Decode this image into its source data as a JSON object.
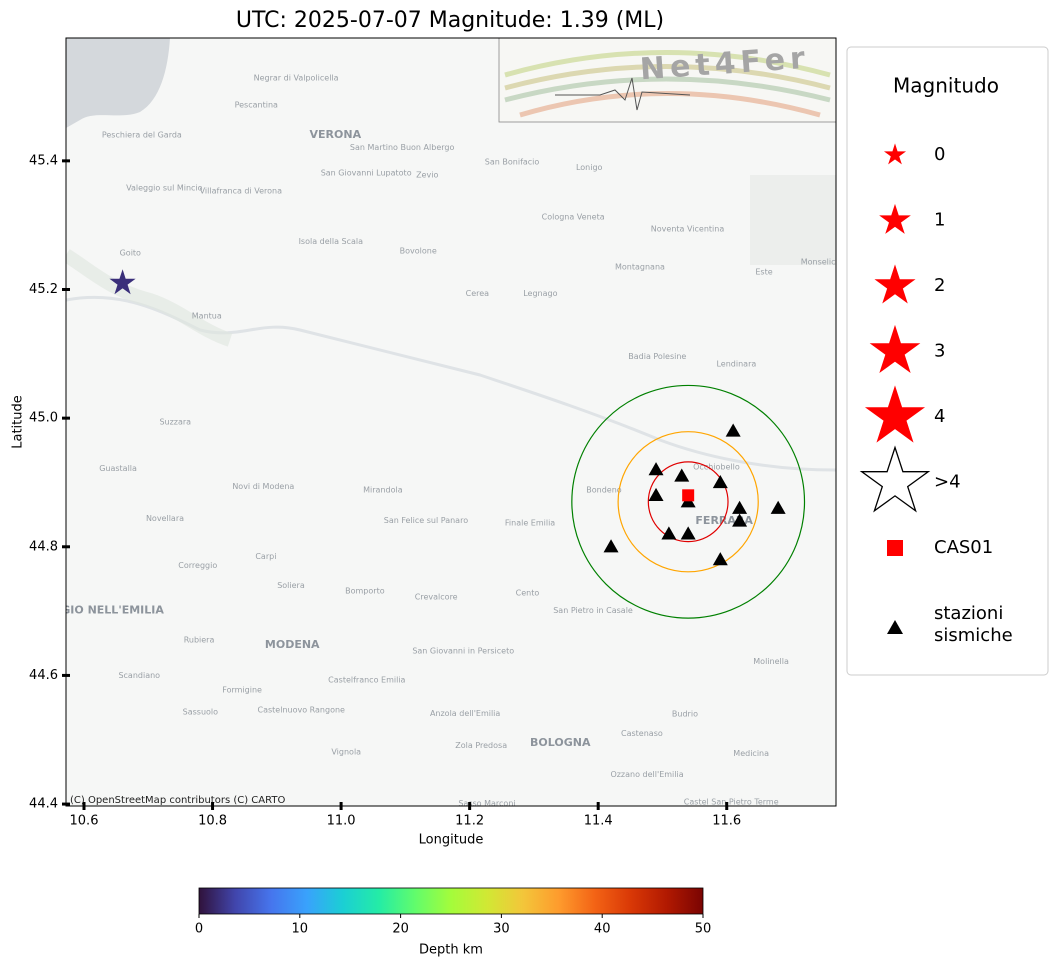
{
  "chart_data": {
    "type": "map",
    "title": "UTC: 2025-07-07 Magnitude: 1.39 (ML)",
    "x_label": "Longitude",
    "y_label": "Latitude",
    "xlim": [
      10.572,
      11.77
    ],
    "ylim": [
      44.397,
      45.591
    ],
    "xticks": [
      10.6,
      10.8,
      {
        "value": 11,
        "label": "11.0"
      },
      11.2,
      11.4,
      11.6
    ],
    "yticks": [
      44.4,
      44.6,
      44.8,
      {
        "value": 45,
        "label": "45.0"
      },
      45.2,
      45.4
    ],
    "attribution": "(C) OpenStreetMap contributors (C) CARTO",
    "logo_text": "Net4Fer",
    "event": {
      "lon": 10.66,
      "lat": 45.21,
      "depth": 2,
      "magnitude": 1.39
    },
    "epicenter_station": {
      "name": "CAS01",
      "lon": 11.54,
      "lat": 44.88,
      "color": "#ff0000"
    },
    "circles": [
      {
        "lon": 11.54,
        "lat": 44.87,
        "radius_deg": 0.062,
        "color": "#e00000"
      },
      {
        "lon": 11.54,
        "lat": 44.87,
        "radius_deg": 0.109,
        "color": "#ffa500"
      },
      {
        "lon": 11.54,
        "lat": 44.87,
        "radius_deg": 0.181,
        "color": "#008000"
      }
    ],
    "stations": {
      "color": "#000000",
      "lon": [
        11.61,
        11.49,
        11.53,
        11.59,
        11.49,
        11.54,
        11.62,
        11.68,
        11.62,
        11.51,
        11.54,
        11.42,
        11.59
      ],
      "lat": [
        44.98,
        44.92,
        44.91,
        44.9,
        44.88,
        44.87,
        44.86,
        44.86,
        44.84,
        44.82,
        44.82,
        44.8,
        44.78
      ]
    },
    "legend": {
      "title": "Magnitudo",
      "magnitudes": [
        "0",
        "1",
        "2",
        "3",
        "4",
        ">4"
      ],
      "color": "#ff0000",
      "square_label": "CAS01",
      "stations_label": [
        "stazioni",
        "sismiche"
      ]
    },
    "colorbar": {
      "label": "Depth km",
      "lim": [
        0,
        50
      ],
      "ticks": [
        0,
        10,
        20,
        30,
        40,
        50
      ],
      "colormap": [
        "#30123b",
        "#4145ab",
        "#4675ed",
        "#39a2fc",
        "#1bcfd4",
        "#24eca6",
        "#61fc6c",
        "#a4fc3b",
        "#d1e834",
        "#f3c63a",
        "#fe9b2d",
        "#f36315",
        "#d93806",
        "#b11901",
        "#7a0402"
      ]
    },
    "places": [
      {
        "name": "Negrar di Valpolicella",
        "lon": 10.93,
        "lat": 45.529
      },
      {
        "name": "Pescantina",
        "lon": 10.868,
        "lat": 45.487
      },
      {
        "name": "VERONA",
        "lon": 10.991,
        "lat": 45.44
      },
      {
        "name": "Peschiera del Garda",
        "lon": 10.69,
        "lat": 45.44
      },
      {
        "name": "San Martino Buon Albergo",
        "lon": 11.095,
        "lat": 45.421
      },
      {
        "name": "San Giovanni Lupatoto",
        "lon": 11.039,
        "lat": 45.381
      },
      {
        "name": "Zevio",
        "lon": 11.134,
        "lat": 45.378
      },
      {
        "name": "San Bonifacio",
        "lon": 11.266,
        "lat": 45.398
      },
      {
        "name": "Lonigo",
        "lon": 11.386,
        "lat": 45.39
      },
      {
        "name": "Valeggio sul Mincio",
        "lon": 10.725,
        "lat": 45.358
      },
      {
        "name": "Villafranca di Verona",
        "lon": 10.844,
        "lat": 45.353
      },
      {
        "name": "Cologna Veneta",
        "lon": 11.361,
        "lat": 45.313
      },
      {
        "name": "Isola della Scala",
        "lon": 10.984,
        "lat": 45.275
      },
      {
        "name": "Bovolone",
        "lon": 11.12,
        "lat": 45.26
      },
      {
        "name": "Noventa Vicentina",
        "lon": 11.539,
        "lat": 45.294
      },
      {
        "name": "Goito",
        "lon": 10.672,
        "lat": 45.257
      },
      {
        "name": "Montagnana",
        "lon": 11.465,
        "lat": 45.235
      },
      {
        "name": "Este",
        "lon": 11.658,
        "lat": 45.227
      },
      {
        "name": "Monselice",
        "lon": 11.746,
        "lat": 45.243
      },
      {
        "name": "Cerea",
        "lon": 11.212,
        "lat": 45.194
      },
      {
        "name": "Legnago",
        "lon": 11.31,
        "lat": 45.194
      },
      {
        "name": "Mantua",
        "lon": 10.791,
        "lat": 45.159
      },
      {
        "name": "Badia Polesine",
        "lon": 11.492,
        "lat": 45.096
      },
      {
        "name": "Lendinara",
        "lon": 11.615,
        "lat": 45.084
      },
      {
        "name": "Suzzara",
        "lon": 10.742,
        "lat": 44.994
      },
      {
        "name": "Occhiobello",
        "lon": 11.584,
        "lat": 44.924
      },
      {
        "name": "Guastalla",
        "lon": 10.653,
        "lat": 44.922
      },
      {
        "name": "Novi di Modena",
        "lon": 10.879,
        "lat": 44.894
      },
      {
        "name": "Mirandola",
        "lon": 11.065,
        "lat": 44.888
      },
      {
        "name": "Bondeno",
        "lon": 11.409,
        "lat": 44.888
      },
      {
        "name": "FERRARA",
        "lon": 11.596,
        "lat": 44.84
      },
      {
        "name": "San Felice sul Panaro",
        "lon": 11.132,
        "lat": 44.841
      },
      {
        "name": "Finale Emilia",
        "lon": 11.294,
        "lat": 44.837
      },
      {
        "name": "Novellara",
        "lon": 10.726,
        "lat": 44.844
      },
      {
        "name": "Correggio",
        "lon": 10.777,
        "lat": 44.771
      },
      {
        "name": "Carpi",
        "lon": 10.883,
        "lat": 44.785
      },
      {
        "name": "Soliera",
        "lon": 10.922,
        "lat": 44.74
      },
      {
        "name": "Bomporto",
        "lon": 11.037,
        "lat": 44.731
      },
      {
        "name": "Crevalcore",
        "lon": 11.148,
        "lat": 44.722
      },
      {
        "name": "Cento",
        "lon": 11.29,
        "lat": 44.728
      },
      {
        "name": "San Pietro in Casale",
        "lon": 11.392,
        "lat": 44.701
      },
      {
        "name": "REGGIO NELL'EMILIA",
        "lon": 10.625,
        "lat": 44.701
      },
      {
        "name": "Rubiera",
        "lon": 10.779,
        "lat": 44.655
      },
      {
        "name": "MODENA",
        "lon": 10.924,
        "lat": 44.647
      },
      {
        "name": "San Giovanni in Persiceto",
        "lon": 11.19,
        "lat": 44.638
      },
      {
        "name": "Molinella",
        "lon": 11.669,
        "lat": 44.622
      },
      {
        "name": "Scandiano",
        "lon": 10.686,
        "lat": 44.6
      },
      {
        "name": "Castelfranco Emilia",
        "lon": 11.04,
        "lat": 44.593
      },
      {
        "name": "Formigine",
        "lon": 10.846,
        "lat": 44.577
      },
      {
        "name": "Sassuolo",
        "lon": 10.781,
        "lat": 44.543
      },
      {
        "name": "Castelnuovo Rangone",
        "lon": 10.938,
        "lat": 44.546
      },
      {
        "name": "Anzola dell'Emilia",
        "lon": 11.193,
        "lat": 44.541
      },
      {
        "name": "Budrio",
        "lon": 11.535,
        "lat": 44.54
      },
      {
        "name": "Castenaso",
        "lon": 11.468,
        "lat": 44.51
      },
      {
        "name": "BOLOGNA",
        "lon": 11.341,
        "lat": 44.495
      },
      {
        "name": "Zola Predosa",
        "lon": 11.218,
        "lat": 44.491
      },
      {
        "name": "Vignola",
        "lon": 11.008,
        "lat": 44.481
      },
      {
        "name": "Medicina",
        "lon": 11.638,
        "lat": 44.479
      },
      {
        "name": "Ozzano dell'Emilia",
        "lon": 11.476,
        "lat": 44.446
      },
      {
        "name": "Castel San Pietro Terme",
        "lon": 11.607,
        "lat": 44.403
      },
      {
        "name": "Sasso Marconi",
        "lon": 11.227,
        "lat": 44.401
      }
    ]
  }
}
